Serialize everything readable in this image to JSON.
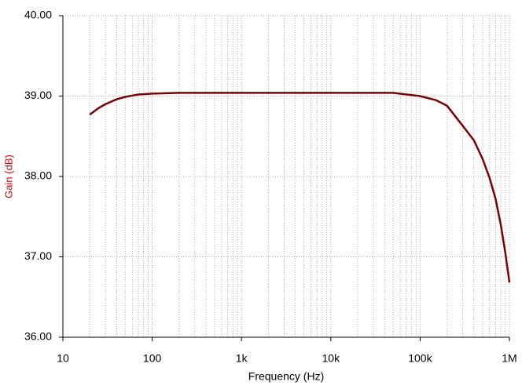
{
  "chart_data": {
    "type": "line",
    "xlabel": "Frequency (Hz)",
    "ylabel": "Gain (dB)",
    "xscale": "log",
    "grid": true,
    "x": [
      20,
      25,
      30,
      40,
      50,
      70,
      100,
      200,
      1000,
      10000,
      50000,
      100000,
      150000,
      200000,
      300000,
      400000,
      500000,
      600000,
      700000,
      800000,
      900000,
      1000000
    ],
    "series": [
      {
        "color": "#800000",
        "values": [
          38.77,
          38.85,
          38.9,
          38.96,
          38.99,
          39.02,
          39.03,
          39.04,
          39.04,
          39.04,
          39.04,
          39.0,
          38.95,
          38.88,
          38.63,
          38.45,
          38.22,
          37.98,
          37.72,
          37.4,
          37.05,
          36.68
        ]
      }
    ],
    "xlim": [
      10,
      1000000
    ],
    "xticks": [
      10,
      100,
      {
        "value": 1000,
        "label": "1k"
      },
      {
        "value": 10000,
        "label": "10k"
      },
      {
        "value": 100000,
        "label": "100k"
      },
      {
        "value": 1000000,
        "label": "1M"
      }
    ],
    "ylim": [
      36,
      40
    ],
    "yticks": [
      {
        "value": 36,
        "label": "36.00"
      },
      {
        "value": 37,
        "label": "37.00"
      },
      {
        "value": 38,
        "label": "38.00"
      },
      {
        "value": 39,
        "label": "39.00"
      },
      {
        "value": 40,
        "label": "40.00"
      }
    ]
  }
}
